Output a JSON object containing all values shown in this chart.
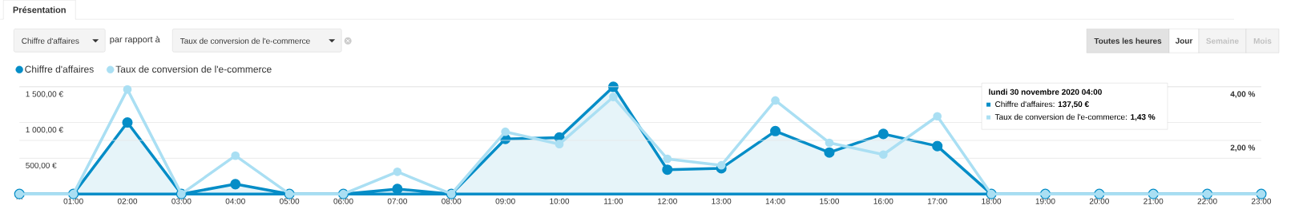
{
  "chart_data": {
    "type": "line",
    "categories": [
      "…",
      "01:00",
      "02:00",
      "03:00",
      "04:00",
      "05:00",
      "06:00",
      "07:00",
      "08:00",
      "09:00",
      "10:00",
      "11:00",
      "12:00",
      "13:00",
      "14:00",
      "15:00",
      "16:00",
      "17:00",
      "18:00",
      "19:00",
      "20:00",
      "21:00",
      "22:00",
      "23:00"
    ],
    "series": [
      {
        "name": "Chiffre d'affaires",
        "type": "area",
        "color": "#058dc7",
        "values": [
          0,
          0,
          1000,
          0,
          137.5,
          0,
          0,
          70,
          0,
          770,
          790,
          1500,
          340,
          360,
          880,
          580,
          840,
          670,
          0,
          0,
          0,
          0,
          0,
          0
        ]
      },
      {
        "name": "Taux de conversion de l'e-commerce",
        "type": "line",
        "color": "#aadff3",
        "axis": "y2",
        "values": [
          0,
          0,
          3.9,
          0,
          1.43,
          0,
          0,
          0.83,
          0,
          2.32,
          1.86,
          3.62,
          1.31,
          1.07,
          3.49,
          1.91,
          1.47,
          2.9,
          0,
          0,
          0,
          0,
          0,
          0
        ]
      }
    ],
    "ylim": [
      0,
      1500
    ],
    "yticks": [
      {
        "value": 500,
        "label": "500,00 €"
      },
      {
        "value": 1000,
        "label": "1 000,00 €"
      },
      {
        "value": 1500,
        "label": "1 500,00 €"
      }
    ],
    "y2lim": [
      0,
      4
    ],
    "y2ticks": [
      {
        "value": 2,
        "label": "2,00 %"
      },
      {
        "value": 4,
        "label": "4,00 %"
      }
    ],
    "grid": "y",
    "legend": "top left",
    "marker": "circle",
    "annotations": [
      "Présentation",
      "Chiffre d'affaires",
      "par rapport à",
      "Taux de conversion de l'e-commerce",
      "Toutes les heures",
      "Jour",
      "Semaine",
      "Mois",
      "**lundi 30 novembre 2020 04:00**",
      "Chiffre d'affaires: **137,50 €**",
      "Taux de conversion de l'e-commerce: **1,43 %**"
    ]
  }
}
